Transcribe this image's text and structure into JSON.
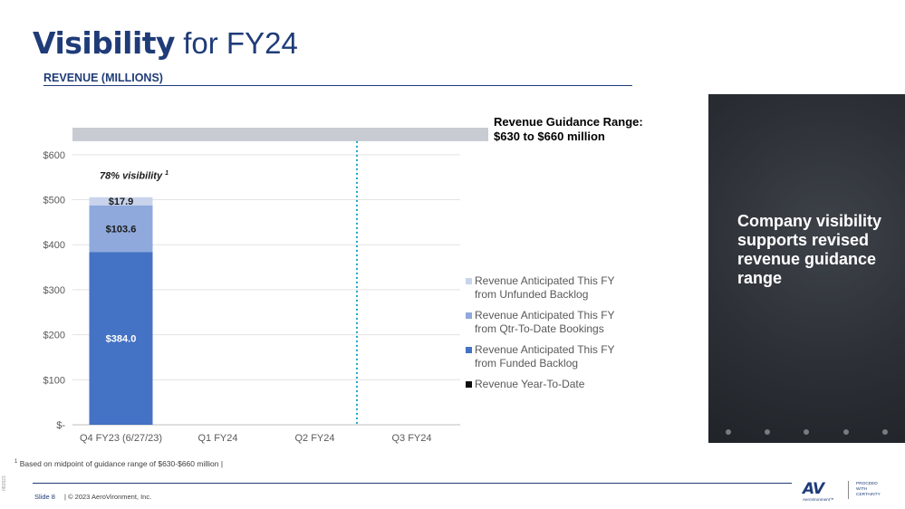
{
  "title": {
    "bold": "Visibility",
    "rest": "for FY24"
  },
  "subtitle": "REVENUE (MILLIONS)",
  "chart_data": {
    "type": "bar",
    "stacked": true,
    "categories": [
      "Q4 FY23 (6/27/23)",
      "Q1 FY24",
      "Q2 FY24",
      "Q3 FY24"
    ],
    "ylim": [
      0,
      660
    ],
    "yticks": [
      0,
      100,
      200,
      300,
      400,
      500,
      600
    ],
    "ytick_labels": [
      "$-",
      "$100",
      "$200",
      "$300",
      "$400",
      "$500",
      "$600"
    ],
    "series": [
      {
        "name": "Revenue Year-To-Date",
        "color": "#0d0d0d",
        "values": [
          0,
          0,
          0,
          0
        ]
      },
      {
        "name": "Revenue Anticipated This FY from Funded Backlog",
        "color": "#4472c4",
        "values": [
          384.0,
          0,
          0,
          0
        ],
        "labels": [
          "$384.0",
          "",
          "",
          ""
        ]
      },
      {
        "name": "Revenue Anticipated This FY from Qtr-To-Date Bookings",
        "color": "#8fa9dc",
        "values": [
          103.6,
          0,
          0,
          0
        ],
        "labels": [
          "$103.6",
          "",
          "",
          ""
        ]
      },
      {
        "name": "Revenue Anticipated This FY from Unfunded Backlog",
        "color": "#c9d4ec",
        "values": [
          17.9,
          0,
          0,
          0
        ],
        "labels": [
          "$17.9",
          "",
          "",
          ""
        ]
      }
    ],
    "guidance_band": {
      "low": 630,
      "high": 660,
      "color": "#c8cbd2"
    },
    "guidance_label_line1": "Revenue Guidance Range:",
    "guidance_label_line2": "$630 to $660 million",
    "current_period_divider": {
      "between": [
        "Q2 FY24",
        "Q3 FY24"
      ],
      "color": "#1aa6c8"
    },
    "annotation": {
      "text": "78% visibility",
      "sup": "1"
    }
  },
  "legend": [
    {
      "label": "Revenue Anticipated This FY\nfrom Unfunded Backlog",
      "color": "#c9d4ec"
    },
    {
      "label": "Revenue Anticipated This FY\nfrom Qtr-To-Date Bookings",
      "color": "#8fa9dc"
    },
    {
      "label": "Revenue Anticipated This FY\nfrom Funded Backlog",
      "color": "#4472c4"
    },
    {
      "label": "Revenue Year-To-Date",
      "color": "#0d0d0d"
    }
  ],
  "side_panel": {
    "text": "Company visibility supports revised revenue guidance range"
  },
  "footnote": {
    "sup": "1",
    "text": "Based on midpoint of guidance range of $630-$660 million  |"
  },
  "footer": {
    "slide": "Slide 8",
    "copyright": "|  © 2023 AeroVironment, Inc."
  },
  "logo": {
    "mark": "AV",
    "name": "AeroVironment™",
    "tagline": "PROCEED\nWITH\nCERTAINTY"
  },
  "side_code": "082823"
}
